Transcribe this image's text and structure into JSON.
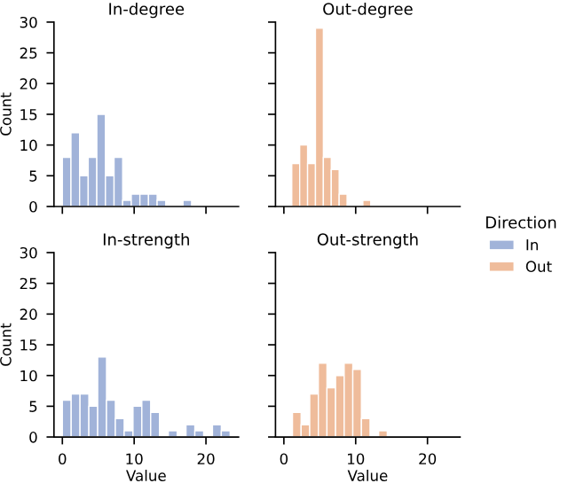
{
  "chart_data": [
    {
      "type": "histogram",
      "title": "In-degree",
      "ylabel": "Count",
      "bins": [
        0,
        1.2,
        2.4,
        3.6,
        4.8,
        6.0,
        7.2,
        8.4,
        9.6,
        10.8,
        12.0,
        13.2,
        14.4,
        15.6,
        16.8,
        18.0
      ],
      "series": [
        {
          "name": "In",
          "color": "#a1b3d9",
          "values": [
            8,
            12,
            5,
            8,
            15,
            5,
            8,
            1,
            2,
            2,
            2,
            1,
            0,
            0,
            1
          ]
        }
      ],
      "xlim": [
        -1.17,
        24.54
      ],
      "xticks": [
        0,
        10,
        20
      ],
      "ylim": [
        0,
        30
      ],
      "yticks": [
        0,
        5,
        10,
        15,
        20,
        25,
        30
      ],
      "tick_labels": "y",
      "legend": "right",
      "legend_title": "Direction"
    },
    {
      "type": "histogram",
      "title": "Out-degree",
      "bins": [
        1.1,
        2.2,
        3.3,
        4.4,
        5.5,
        6.6,
        7.7,
        8.8,
        9.9,
        11.0,
        12.1
      ],
      "series": [
        {
          "name": "Out",
          "color": "#efbc9b",
          "values": [
            7,
            10,
            7,
            29,
            8,
            6,
            2,
            0,
            0,
            1
          ]
        }
      ],
      "xlim": [
        -1.17,
        24.54
      ],
      "xticks": [
        0,
        10,
        20
      ],
      "ylim": [
        0,
        30
      ],
      "yticks": [
        0,
        5,
        10,
        15,
        20,
        25,
        30
      ],
      "tick_labels": false
    },
    {
      "type": "histogram",
      "title": "In-strength",
      "xlabel": "Value",
      "ylabel": "Count",
      "bins": [
        0,
        1.23,
        2.46,
        3.69,
        4.92,
        6.15,
        7.38,
        8.61,
        9.84,
        11.07,
        12.3,
        13.53,
        14.76,
        15.99,
        17.22,
        18.45,
        19.68,
        20.91,
        22.14,
        23.37
      ],
      "series": [
        {
          "name": "In",
          "color": "#a1b3d9",
          "values": [
            6,
            7,
            7,
            5,
            13,
            6,
            3,
            1,
            5,
            6,
            4,
            0,
            1,
            0,
            2,
            1,
            0,
            2,
            1
          ]
        }
      ],
      "xlim": [
        -1.17,
        24.54
      ],
      "xticks": [
        0,
        10,
        20
      ],
      "ylim": [
        0,
        30
      ],
      "yticks": [
        0,
        5,
        10,
        15,
        20,
        25,
        30
      ]
    },
    {
      "type": "histogram",
      "title": "Out-strength",
      "xlabel": "Value",
      "bins": [
        1.2,
        2.4,
        3.6,
        4.8,
        6.0,
        7.2,
        8.4,
        9.6,
        10.8,
        12.0,
        13.2,
        14.4
      ],
      "series": [
        {
          "name": "Out",
          "color": "#efbc9b",
          "values": [
            4,
            2,
            7,
            12,
            8,
            10,
            12,
            11,
            3,
            0,
            1
          ]
        }
      ],
      "xlim": [
        -1.17,
        24.54
      ],
      "xticks": [
        0,
        10,
        20
      ],
      "ylim": [
        0,
        30
      ],
      "yticks": [
        0,
        5,
        10,
        15,
        20,
        25,
        30
      ],
      "tick_labels": "x"
    }
  ]
}
